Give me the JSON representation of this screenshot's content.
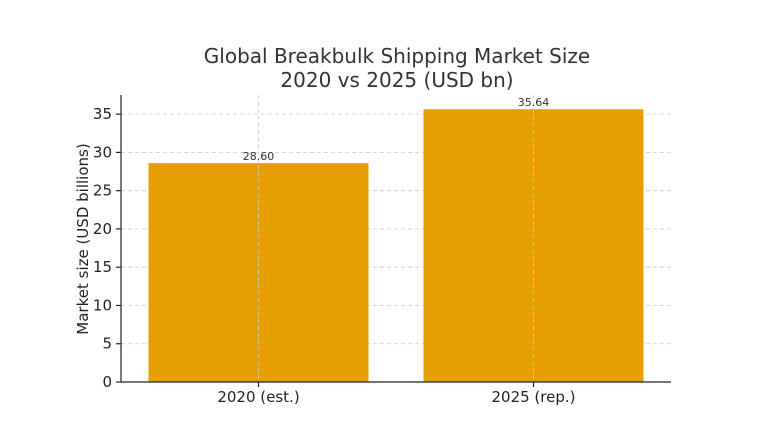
{
  "chart_data": {
    "type": "bar",
    "title_lines": [
      "Global Breakbulk Shipping Market Size",
      "2020 vs 2025 (USD bn)"
    ],
    "xlabel": "",
    "ylabel": "Market size (USD billions)",
    "categories": [
      "2020 (est.)",
      "2025 (rep.)"
    ],
    "values": [
      28.6,
      35.64
    ],
    "value_labels": [
      "28.60",
      "35.64"
    ],
    "ylim": [
      0,
      37.5
    ],
    "yticks": [
      0,
      5,
      10,
      15,
      20,
      25,
      30,
      35
    ],
    "grid": true,
    "bar_color": "#E69F00"
  }
}
